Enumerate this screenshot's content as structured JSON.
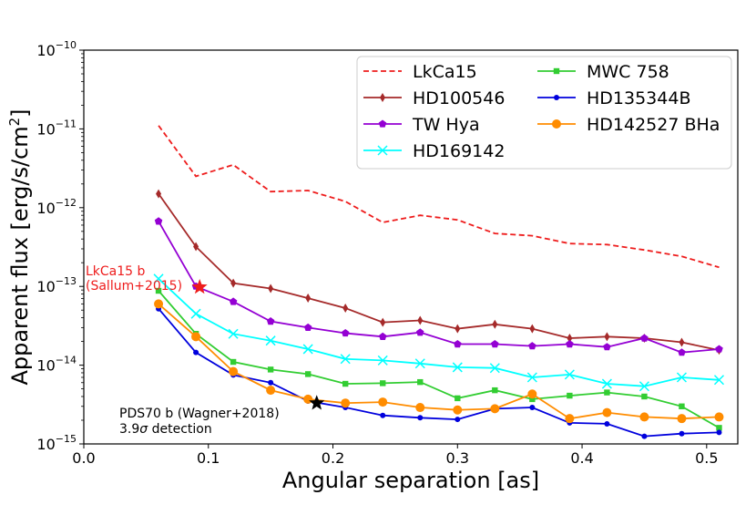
{
  "chart_data": {
    "type": "line",
    "title": "",
    "xlabel": "Angular separation [as]",
    "ylabel_prefix": "Apparent flux [erg/s/cm",
    "ylabel_sup": "2",
    "ylabel_suffix": "]",
    "xlim": [
      0.0,
      0.525
    ],
    "ylim_log10": [
      -15,
      -10
    ],
    "y_scale": "log",
    "x_ticks": [
      {
        "value": 0.0,
        "label": "0.0"
      },
      {
        "value": 0.1,
        "label": "0.1"
      },
      {
        "value": 0.2,
        "label": "0.2"
      },
      {
        "value": 0.3,
        "label": "0.3"
      },
      {
        "value": 0.4,
        "label": "0.4"
      },
      {
        "value": 0.5,
        "label": "0.5"
      }
    ],
    "y_ticks": [
      {
        "exp": -10,
        "base": "10",
        "sup": "−10"
      },
      {
        "exp": -11,
        "base": "10",
        "sup": "−11"
      },
      {
        "exp": -12,
        "base": "10",
        "sup": "−12"
      },
      {
        "exp": -13,
        "base": "10",
        "sup": "−13"
      },
      {
        "exp": -14,
        "base": "10",
        "sup": "−14"
      },
      {
        "exp": -15,
        "base": "10",
        "sup": "−15"
      }
    ],
    "x": [
      0.06,
      0.09,
      0.12,
      0.15,
      0.18,
      0.21,
      0.24,
      0.27,
      0.3,
      0.33,
      0.36,
      0.39,
      0.42,
      0.45,
      0.48,
      0.51
    ],
    "series": [
      {
        "name": "LkCa15",
        "color": "#ee1c1c",
        "style": "dashed",
        "marker": "none",
        "values": [
          1.1e-11,
          2.5e-12,
          3.5e-12,
          1.6e-12,
          1.65e-12,
          1.2e-12,
          6.5e-13,
          8e-13,
          7e-13,
          4.7e-13,
          4.4e-13,
          3.5e-13,
          3.4e-13,
          2.9e-13,
          2.4e-13,
          1.75e-13
        ]
      },
      {
        "name": "HD100546",
        "color": "#a52a2a",
        "style": "solid",
        "marker": "thin_diamond",
        "values": [
          1.5e-12,
          3.2e-13,
          1.1e-13,
          9.4e-14,
          7.1e-14,
          5.3e-14,
          3.5e-14,
          3.7e-14,
          2.9e-14,
          3.3e-14,
          2.9e-14,
          2.2e-14,
          2.3e-14,
          2.2e-14,
          1.95e-14,
          1.55e-14
        ]
      },
      {
        "name": "TW Hya",
        "color": "#9400d3",
        "style": "solid",
        "marker": "pentagon",
        "values": [
          6.7e-13,
          1e-13,
          6.4e-14,
          3.6e-14,
          3e-14,
          2.55e-14,
          2.3e-14,
          2.6e-14,
          1.85e-14,
          1.85e-14,
          1.75e-14,
          1.85e-14,
          1.7e-14,
          2.2e-14,
          1.45e-14,
          1.6e-14
        ]
      },
      {
        "name": "HD169142",
        "color": "#00ffff",
        "style": "solid",
        "marker": "x",
        "values": [
          1.25e-13,
          4.5e-14,
          2.5e-14,
          2.05e-14,
          1.6e-14,
          1.2e-14,
          1.15e-14,
          1.05e-14,
          9.4e-15,
          9.2e-15,
          7e-15,
          7.6e-15,
          5.8e-15,
          5.4e-15,
          7e-15,
          6.5e-15
        ]
      },
      {
        "name": "MWC 758",
        "color": "#32cd32",
        "style": "solid",
        "marker": "square",
        "values": [
          8.8e-14,
          2.5e-14,
          1.1e-14,
          8.8e-15,
          7.7e-15,
          5.8e-15,
          5.9e-15,
          6.1e-15,
          3.8e-15,
          4.8e-15,
          3.7e-15,
          4.1e-15,
          4.5e-15,
          4e-15,
          3e-15,
          1.6e-15
        ]
      },
      {
        "name": "HD135344B",
        "color": "#0000dd",
        "style": "solid",
        "marker": "circle_small",
        "values": [
          5.2e-14,
          1.45e-14,
          7.5e-15,
          6e-15,
          3.5e-15,
          2.9e-15,
          2.3e-15,
          2.15e-15,
          2.05e-15,
          2.8e-15,
          2.9e-15,
          1.85e-15,
          1.8e-15,
          1.25e-15,
          1.35e-15,
          1.4e-15
        ]
      },
      {
        "name": "HD142527 BHa",
        "color": "#ff8c00",
        "style": "solid",
        "marker": "circle_large",
        "values": [
          6e-14,
          2.3e-14,
          8.3e-15,
          4.8e-15,
          3.7e-15,
          3.3e-15,
          3.4e-15,
          2.9e-15,
          2.7e-15,
          2.8e-15,
          4.3e-15,
          2.1e-15,
          2.5e-15,
          2.2e-15,
          2.1e-15,
          2.2e-15
        ]
      }
    ],
    "legend": {
      "placement": "top-right",
      "columns": 2,
      "order": [
        "LkCa15",
        "HD100546",
        "TW Hya",
        "HD169142",
        "MWC 758",
        "HD135344B",
        "HD142527 BHa"
      ]
    },
    "annotations": [
      {
        "name": "lkca15b",
        "x": 0.093,
        "y": 9.8e-14,
        "marker": "star",
        "color": "#ee1c1c",
        "lines": [
          "LkCa15 b",
          "(Sallum+2015)"
        ],
        "text_color": "#ee1c1c"
      },
      {
        "name": "pds70b",
        "x": 0.187,
        "y": 3.3e-15,
        "marker": "star",
        "color": "#000000",
        "lines": [
          "PDS70 b (Wagner+2018)"
        ],
        "line2_prefix": "3.9",
        "line2_sigma": "σ",
        "line2_suffix": " detection",
        "text_color": "#000000"
      }
    ]
  }
}
